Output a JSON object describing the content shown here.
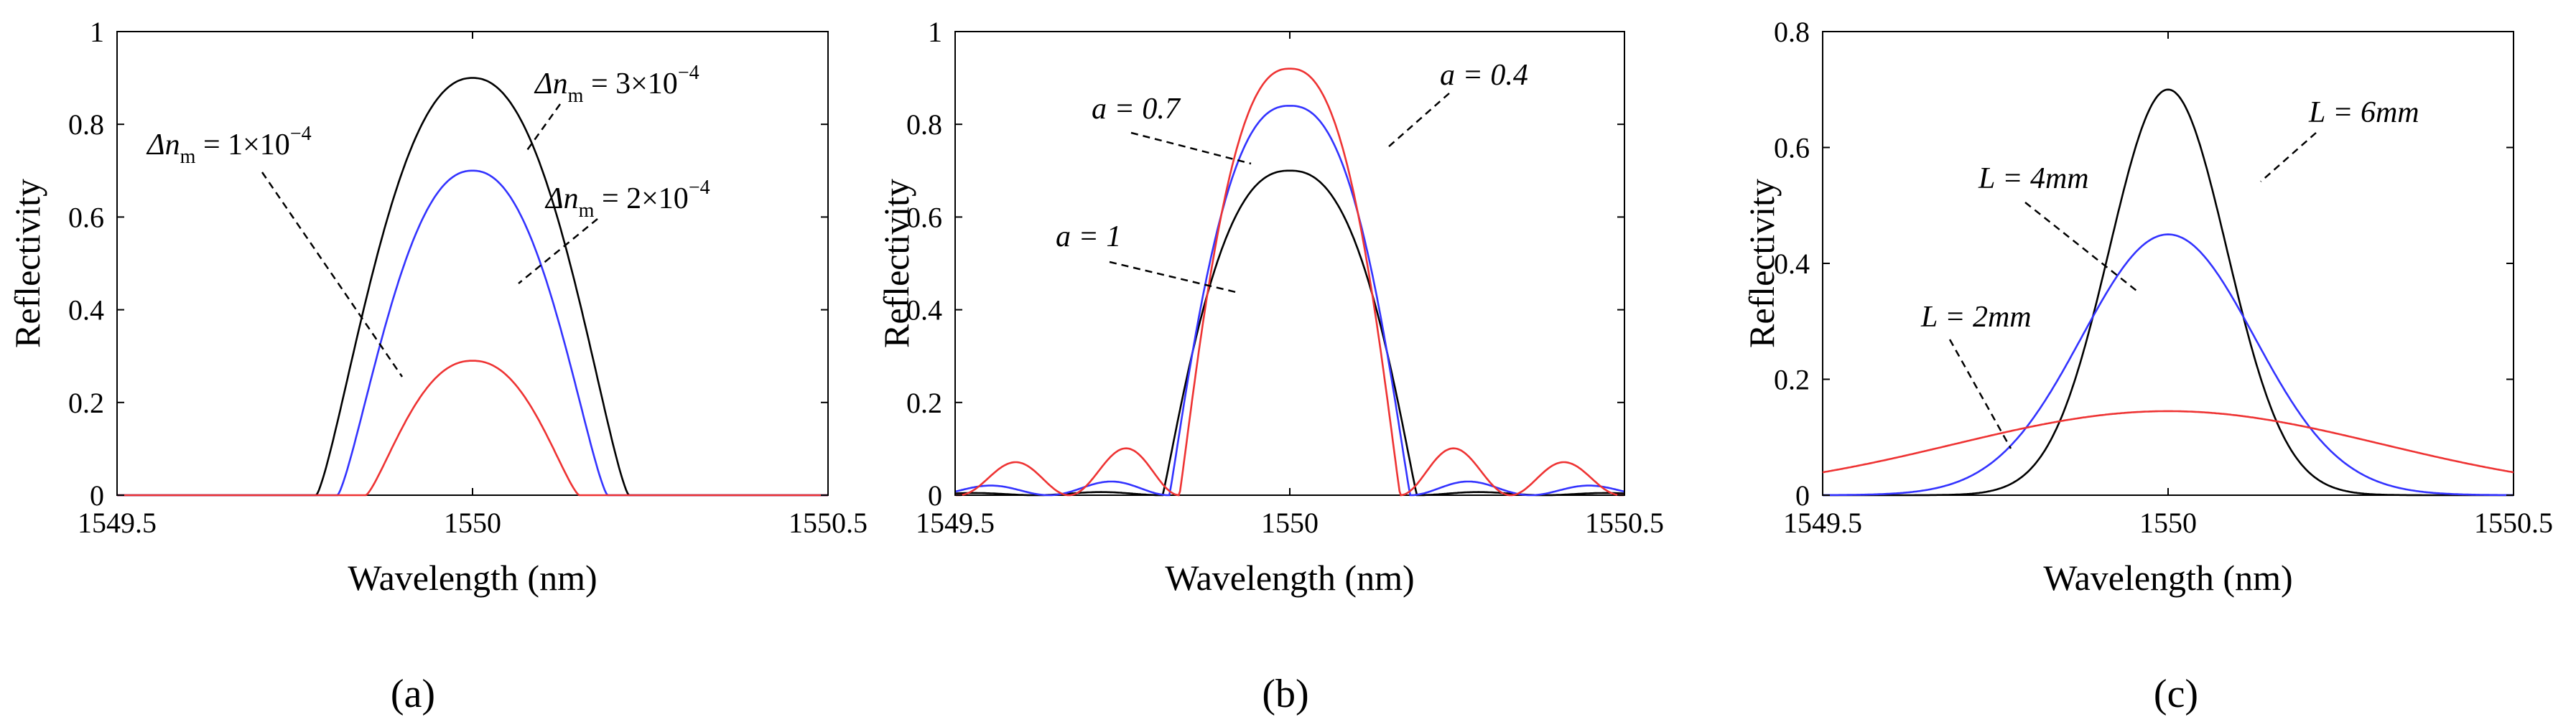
{
  "chart_data": [
    {
      "type": "line",
      "panel": "(a)",
      "xlabel": "Wavelength (nm)",
      "ylabel": "Reflectivity",
      "xlim": [
        1549.5,
        1550.5
      ],
      "ylim": [
        0,
        1
      ],
      "xticks": [
        "1549.5",
        "1550",
        "1550.5"
      ],
      "yticks": [
        "0",
        "0.2",
        "0.4",
        "0.6",
        "0.8",
        "1"
      ],
      "series": [
        {
          "name": "Δn_m = 3×10⁻⁴",
          "color": "#000000",
          "peak": 0.9,
          "center": 1550,
          "halfwidth": 0.22,
          "shape": "flat"
        },
        {
          "name": "Δn_m = 2×10⁻⁴",
          "color": "#3333ff",
          "peak": 0.7,
          "center": 1550,
          "halfwidth": 0.19,
          "shape": "flat"
        },
        {
          "name": "Δn_m = 1×10⁻⁴",
          "color": "#ee3333",
          "peak": 0.29,
          "center": 1550,
          "halfwidth": 0.15,
          "shape": "flat"
        }
      ],
      "annotations": [
        {
          "symbol": "Δn",
          "sub": "m",
          "rest": " = 3×10",
          "sup": "−4",
          "series": 0
        },
        {
          "symbol": "Δn",
          "sub": "m",
          "rest": " = 2×10",
          "sup": "−4",
          "series": 1
        },
        {
          "symbol": "Δn",
          "sub": "m",
          "rest": " = 1×10",
          "sup": "−4",
          "series": 2
        }
      ]
    },
    {
      "type": "line",
      "panel": "(b)",
      "xlabel": "Wavelength (nm)",
      "ylabel": "Reflectivity",
      "xlim": [
        1549.5,
        1550.5
      ],
      "ylim": [
        0,
        1
      ],
      "xticks": [
        "1549.5",
        "1550",
        "1550.5"
      ],
      "yticks": [
        "0",
        "0.2",
        "0.4",
        "0.6",
        "0.8",
        "1"
      ],
      "series": [
        {
          "name": "a = 1",
          "color": "#000000",
          "peak": 0.7,
          "center": 1550,
          "halfwidth": 0.19,
          "shape": "sinc"
        },
        {
          "name": "a = 0.7",
          "color": "#3333ff",
          "peak": 0.84,
          "center": 1550,
          "halfwidth": 0.18,
          "shape": "sinc"
        },
        {
          "name": "a = 0.4",
          "color": "#ee3333",
          "peak": 0.92,
          "center": 1550,
          "halfwidth": 0.165,
          "shape": "sinc"
        }
      ],
      "annotations": [
        {
          "text": "a = 0.7",
          "series": 1
        },
        {
          "text": "a = 0.4",
          "series": 2
        },
        {
          "text": "a = 1",
          "series": 0
        }
      ]
    },
    {
      "type": "line",
      "panel": "(c)",
      "xlabel": "Wavelength (nm)",
      "ylabel": "Reflectivity",
      "xlim": [
        1549.5,
        1550.5
      ],
      "ylim": [
        0,
        0.8
      ],
      "xticks": [
        "1549.5",
        "1550",
        "1550.5"
      ],
      "yticks": [
        "0",
        "0.2",
        "0.4",
        "0.6",
        "0.8"
      ],
      "series": [
        {
          "name": "L = 6mm",
          "color": "#000000",
          "peak": 0.7,
          "center": 1550,
          "sigma": 0.085,
          "shape": "gauss"
        },
        {
          "name": "L = 4mm",
          "color": "#3333ff",
          "peak": 0.45,
          "center": 1550,
          "sigma": 0.125,
          "shape": "gauss"
        },
        {
          "name": "L = 2mm",
          "color": "#ee3333",
          "peak": 0.145,
          "center": 1550,
          "sigma": 0.31,
          "shape": "gauss"
        }
      ],
      "annotations": [
        {
          "text": "L = 6mm",
          "series": 0
        },
        {
          "text": "L = 4mm",
          "series": 1
        },
        {
          "text": "L = 2mm",
          "series": 2
        }
      ]
    }
  ]
}
